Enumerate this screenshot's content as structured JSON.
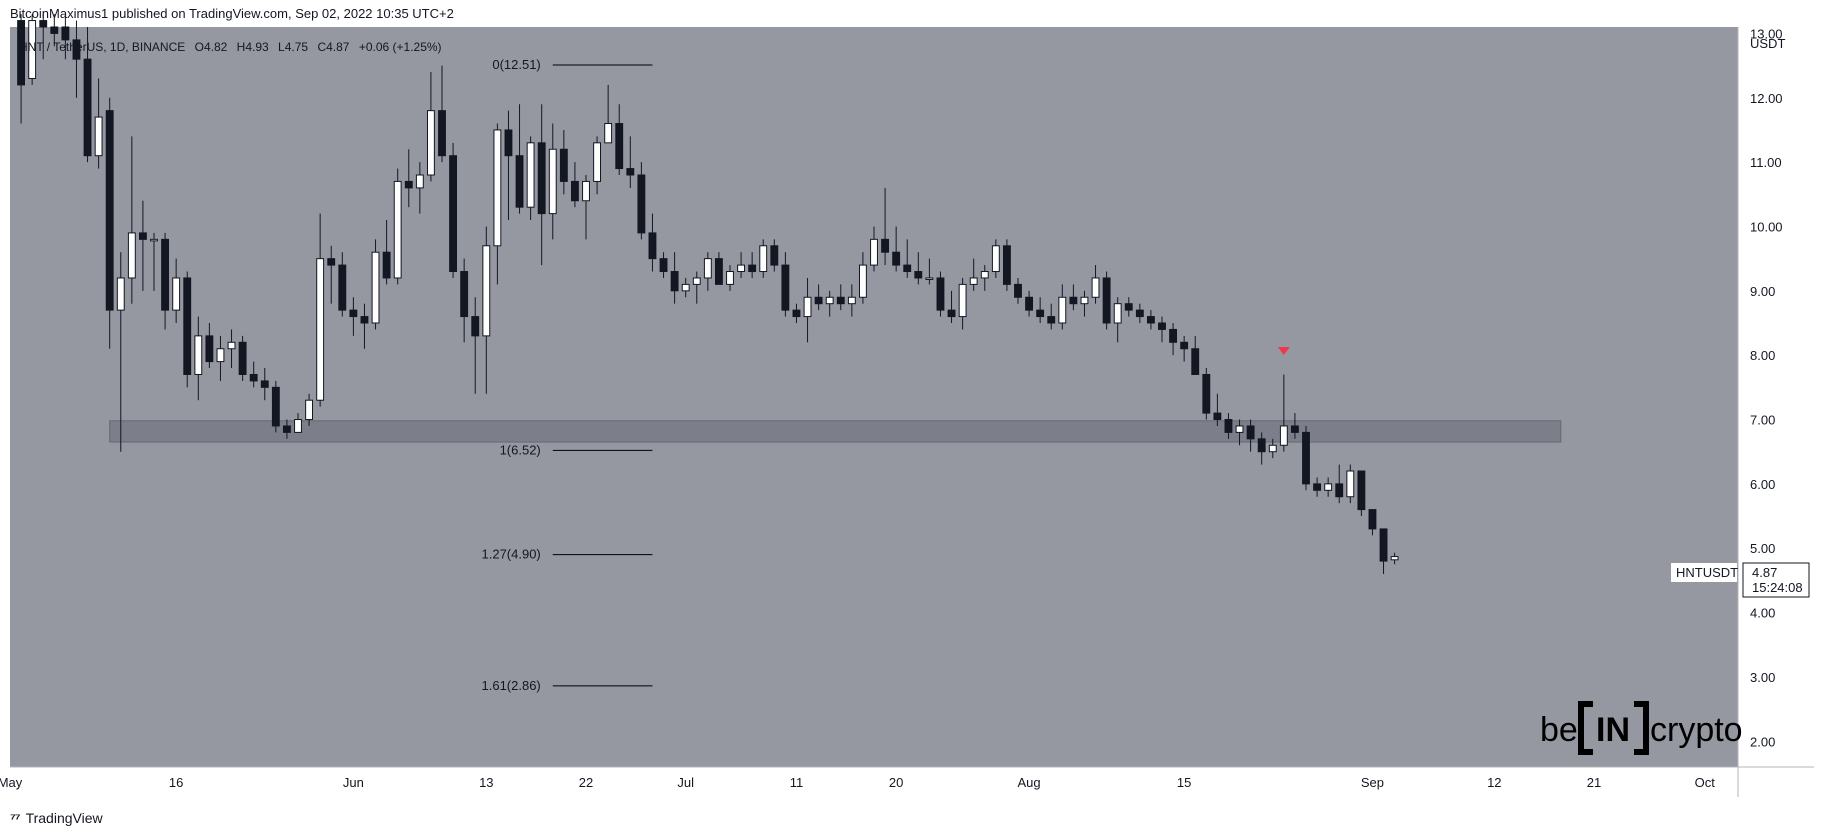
{
  "publisher_line": "BitcoinMaximus1 published on TradingView.com, Sep 02, 2022 10:35 UTC+2",
  "footer_brand": "TradingView",
  "watermark": {
    "left": "be",
    "bracket": "IN",
    "right": "crypto"
  },
  "colors": {
    "plot_bg": "#9598a1",
    "up_candle": "#ffffff",
    "down_candle": "#131722",
    "zone": "#787b86",
    "fib_line": "#000000",
    "marker": "#f23645"
  },
  "chart_data": {
    "type": "candlestick",
    "symbol_line": {
      "symbol": "HNT / TetherUS, 1D, BINANCE",
      "o_label": "O",
      "o": "4.82",
      "h_label": "H",
      "h": "4.93",
      "l_label": "L",
      "l": "4.75",
      "c_label": "C",
      "c": "4.87",
      "change": "+0.06 (+1.25%)"
    },
    "y_axis": {
      "unit": "USDT",
      "range": [
        1.6,
        13.1
      ],
      "ticks": [
        "13.00",
        "12.00",
        "11.00",
        "10.00",
        "9.00",
        "8.00",
        "7.00",
        "6.00",
        "5.00",
        "4.00",
        "3.00",
        "2.00"
      ]
    },
    "x_axis": {
      "range": [
        "2022-05-01",
        "2022-10-04"
      ],
      "ticks": [
        {
          "date": "2022-05-01",
          "label": "May"
        },
        {
          "date": "2022-05-16",
          "label": "16"
        },
        {
          "date": "2022-06-01",
          "label": "Jun"
        },
        {
          "date": "2022-06-13",
          "label": "13"
        },
        {
          "date": "2022-06-22",
          "label": "22"
        },
        {
          "date": "2022-07-01",
          "label": "Jul"
        },
        {
          "date": "2022-07-11",
          "label": "11"
        },
        {
          "date": "2022-07-20",
          "label": "20"
        },
        {
          "date": "2022-08-01",
          "label": "Aug"
        },
        {
          "date": "2022-08-15",
          "label": "15"
        },
        {
          "date": "2022-09-01",
          "label": "Sep"
        },
        {
          "date": "2022-09-12",
          "label": "12"
        },
        {
          "date": "2022-09-21",
          "label": "21"
        },
        {
          "date": "2022-10-01",
          "label": "Oct"
        }
      ]
    },
    "start_date": "2022-05-02",
    "candles": [
      [
        13.2,
        13.3,
        11.6,
        12.2
      ],
      [
        12.3,
        13.3,
        12.2,
        13.2
      ],
      [
        13.2,
        13.3,
        12.6,
        13.1
      ],
      [
        13.1,
        13.3,
        12.8,
        13.0
      ],
      [
        13.1,
        13.3,
        12.6,
        12.9
      ],
      [
        12.9,
        13.2,
        12.0,
        12.6
      ],
      [
        12.6,
        13.1,
        11.0,
        11.1
      ],
      [
        11.1,
        12.3,
        10.9,
        11.7
      ],
      [
        11.8,
        12.0,
        8.1,
        8.7
      ],
      [
        8.7,
        9.6,
        6.5,
        9.2
      ],
      [
        9.2,
        11.4,
        8.8,
        9.9
      ],
      [
        9.9,
        10.4,
        9.0,
        9.8
      ],
      [
        9.8,
        9.9,
        9.0,
        9.8
      ],
      [
        9.8,
        9.9,
        8.4,
        8.7
      ],
      [
        8.7,
        9.5,
        8.5,
        9.2
      ],
      [
        9.2,
        9.3,
        7.5,
        7.7
      ],
      [
        7.7,
        8.6,
        7.3,
        8.3
      ],
      [
        8.3,
        8.5,
        7.8,
        7.9
      ],
      [
        7.9,
        8.3,
        7.6,
        8.1
      ],
      [
        8.1,
        8.4,
        7.8,
        8.2
      ],
      [
        8.2,
        8.3,
        7.6,
        7.7
      ],
      [
        7.7,
        7.9,
        7.5,
        7.6
      ],
      [
        7.6,
        7.8,
        7.3,
        7.5
      ],
      [
        7.5,
        7.6,
        6.8,
        6.9
      ],
      [
        6.9,
        7.0,
        6.7,
        6.8
      ],
      [
        6.8,
        7.1,
        6.8,
        7.0
      ],
      [
        7.0,
        7.4,
        6.9,
        7.3
      ],
      [
        7.3,
        10.2,
        7.2,
        9.5
      ],
      [
        9.5,
        9.7,
        8.8,
        9.4
      ],
      [
        9.4,
        9.6,
        8.6,
        8.7
      ],
      [
        8.7,
        8.9,
        8.3,
        8.6
      ],
      [
        8.6,
        8.8,
        8.1,
        8.5
      ],
      [
        8.5,
        9.8,
        8.4,
        9.6
      ],
      [
        9.6,
        10.1,
        9.1,
        9.2
      ],
      [
        9.2,
        10.9,
        9.1,
        10.7
      ],
      [
        10.7,
        11.2,
        10.3,
        10.6
      ],
      [
        10.6,
        11.0,
        10.2,
        10.8
      ],
      [
        10.8,
        12.4,
        10.7,
        11.8
      ],
      [
        11.8,
        12.5,
        11.0,
        11.1
      ],
      [
        11.1,
        11.3,
        9.2,
        9.3
      ],
      [
        9.3,
        9.5,
        8.2,
        8.6
      ],
      [
        8.6,
        8.9,
        7.4,
        8.3
      ],
      [
        8.3,
        10.0,
        7.4,
        9.7
      ],
      [
        9.7,
        11.6,
        9.1,
        11.5
      ],
      [
        11.5,
        11.8,
        10.1,
        11.1
      ],
      [
        11.1,
        11.9,
        10.2,
        10.3
      ],
      [
        10.3,
        11.4,
        10.1,
        11.3
      ],
      [
        11.3,
        11.9,
        9.4,
        10.2
      ],
      [
        10.2,
        11.6,
        9.8,
        11.2
      ],
      [
        11.2,
        11.5,
        10.5,
        10.7
      ],
      [
        10.7,
        11.0,
        10.3,
        10.4
      ],
      [
        10.4,
        10.8,
        9.8,
        10.7
      ],
      [
        10.7,
        11.4,
        10.5,
        11.3
      ],
      [
        11.3,
        12.2,
        11.3,
        11.6
      ],
      [
        11.6,
        11.9,
        10.8,
        10.9
      ],
      [
        10.9,
        11.4,
        10.6,
        10.8
      ],
      [
        10.8,
        11.0,
        9.8,
        9.9
      ],
      [
        9.9,
        10.2,
        9.3,
        9.5
      ],
      [
        9.5,
        9.6,
        9.2,
        9.3
      ],
      [
        9.3,
        9.6,
        8.8,
        9.0
      ],
      [
        9.0,
        9.2,
        8.9,
        9.1
      ],
      [
        9.1,
        9.3,
        8.8,
        9.2
      ],
      [
        9.2,
        9.6,
        9.0,
        9.5
      ],
      [
        9.5,
        9.6,
        9.1,
        9.1
      ],
      [
        9.1,
        9.4,
        9.0,
        9.3
      ],
      [
        9.3,
        9.6,
        9.2,
        9.4
      ],
      [
        9.4,
        9.6,
        9.2,
        9.3
      ],
      [
        9.3,
        9.8,
        9.2,
        9.7
      ],
      [
        9.7,
        9.8,
        9.3,
        9.4
      ],
      [
        9.4,
        9.6,
        8.6,
        8.7
      ],
      [
        8.7,
        8.8,
        8.5,
        8.6
      ],
      [
        8.6,
        9.2,
        8.2,
        8.9
      ],
      [
        8.9,
        9.1,
        8.7,
        8.8
      ],
      [
        8.8,
        9.0,
        8.6,
        8.9
      ],
      [
        8.9,
        9.1,
        8.7,
        8.8
      ],
      [
        8.8,
        9.1,
        8.6,
        8.9
      ],
      [
        8.9,
        9.6,
        8.8,
        9.4
      ],
      [
        9.4,
        10.0,
        9.3,
        9.8
      ],
      [
        9.8,
        10.6,
        9.4,
        9.6
      ],
      [
        9.6,
        10.0,
        9.3,
        9.4
      ],
      [
        9.4,
        9.8,
        9.2,
        9.3
      ],
      [
        9.3,
        9.6,
        9.1,
        9.2
      ],
      [
        9.2,
        9.5,
        9.1,
        9.2
      ],
      [
        9.2,
        9.3,
        8.6,
        8.7
      ],
      [
        8.7,
        9.0,
        8.5,
        8.6
      ],
      [
        8.6,
        9.2,
        8.4,
        9.1
      ],
      [
        9.1,
        9.5,
        9.0,
        9.2
      ],
      [
        9.2,
        9.4,
        9.0,
        9.3
      ],
      [
        9.3,
        9.8,
        9.2,
        9.7
      ],
      [
        9.7,
        9.8,
        9.0,
        9.1
      ],
      [
        9.1,
        9.2,
        8.8,
        8.9
      ],
      [
        8.9,
        9.0,
        8.6,
        8.7
      ],
      [
        8.7,
        8.9,
        8.5,
        8.6
      ],
      [
        8.6,
        8.8,
        8.4,
        8.5
      ],
      [
        8.5,
        9.1,
        8.4,
        8.9
      ],
      [
        8.9,
        9.1,
        8.7,
        8.8
      ],
      [
        8.8,
        9.0,
        8.6,
        8.9
      ],
      [
        8.9,
        9.4,
        8.8,
        9.2
      ],
      [
        9.2,
        9.3,
        8.4,
        8.5
      ],
      [
        8.5,
        8.9,
        8.2,
        8.8
      ],
      [
        8.8,
        8.9,
        8.6,
        8.7
      ],
      [
        8.7,
        8.8,
        8.5,
        8.6
      ],
      [
        8.6,
        8.7,
        8.4,
        8.5
      ],
      [
        8.5,
        8.6,
        8.2,
        8.4
      ],
      [
        8.4,
        8.5,
        8.0,
        8.2
      ],
      [
        8.2,
        8.3,
        7.9,
        8.1
      ],
      [
        8.1,
        8.3,
        7.7,
        7.7
      ],
      [
        7.7,
        7.8,
        7.0,
        7.1
      ],
      [
        7.1,
        7.4,
        6.9,
        7.0
      ],
      [
        7.0,
        7.1,
        6.7,
        6.8
      ],
      [
        6.8,
        7.0,
        6.6,
        6.9
      ],
      [
        6.9,
        7.0,
        6.5,
        6.7
      ],
      [
        6.7,
        6.8,
        6.3,
        6.5
      ],
      [
        6.5,
        6.7,
        6.4,
        6.6
      ],
      [
        6.6,
        7.7,
        6.5,
        6.9
      ],
      [
        6.9,
        7.1,
        6.7,
        6.8
      ],
      [
        6.8,
        6.9,
        5.9,
        6.0
      ],
      [
        6.0,
        6.1,
        5.8,
        5.9
      ],
      [
        5.9,
        6.1,
        5.8,
        6.0
      ],
      [
        6.0,
        6.3,
        5.7,
        5.8
      ],
      [
        5.8,
        6.3,
        5.7,
        6.2
      ],
      [
        6.2,
        6.2,
        5.5,
        5.6
      ],
      [
        5.6,
        5.6,
        5.2,
        5.3
      ],
      [
        5.3,
        5.3,
        4.6,
        4.8
      ],
      [
        4.82,
        4.93,
        4.75,
        4.87
      ]
    ],
    "support_zone": {
      "low": 6.65,
      "high": 6.98,
      "from": "2022-05-10",
      "to": "2022-09-18"
    },
    "fib_levels": [
      {
        "label": "0(12.51)",
        "value": 12.51
      },
      {
        "label": "1(6.52)",
        "value": 6.52
      },
      {
        "label": "1.27(4.90)",
        "value": 4.9
      },
      {
        "label": "1.61(2.86)",
        "value": 2.86
      }
    ],
    "fib_span": {
      "from": "2022-06-19",
      "to": "2022-06-28"
    },
    "marker": {
      "date": "2022-08-24",
      "price": 8.05
    },
    "price_label": {
      "symbol": "HNTUSDT",
      "price": "4.87",
      "countdown": "15:24:08"
    }
  }
}
